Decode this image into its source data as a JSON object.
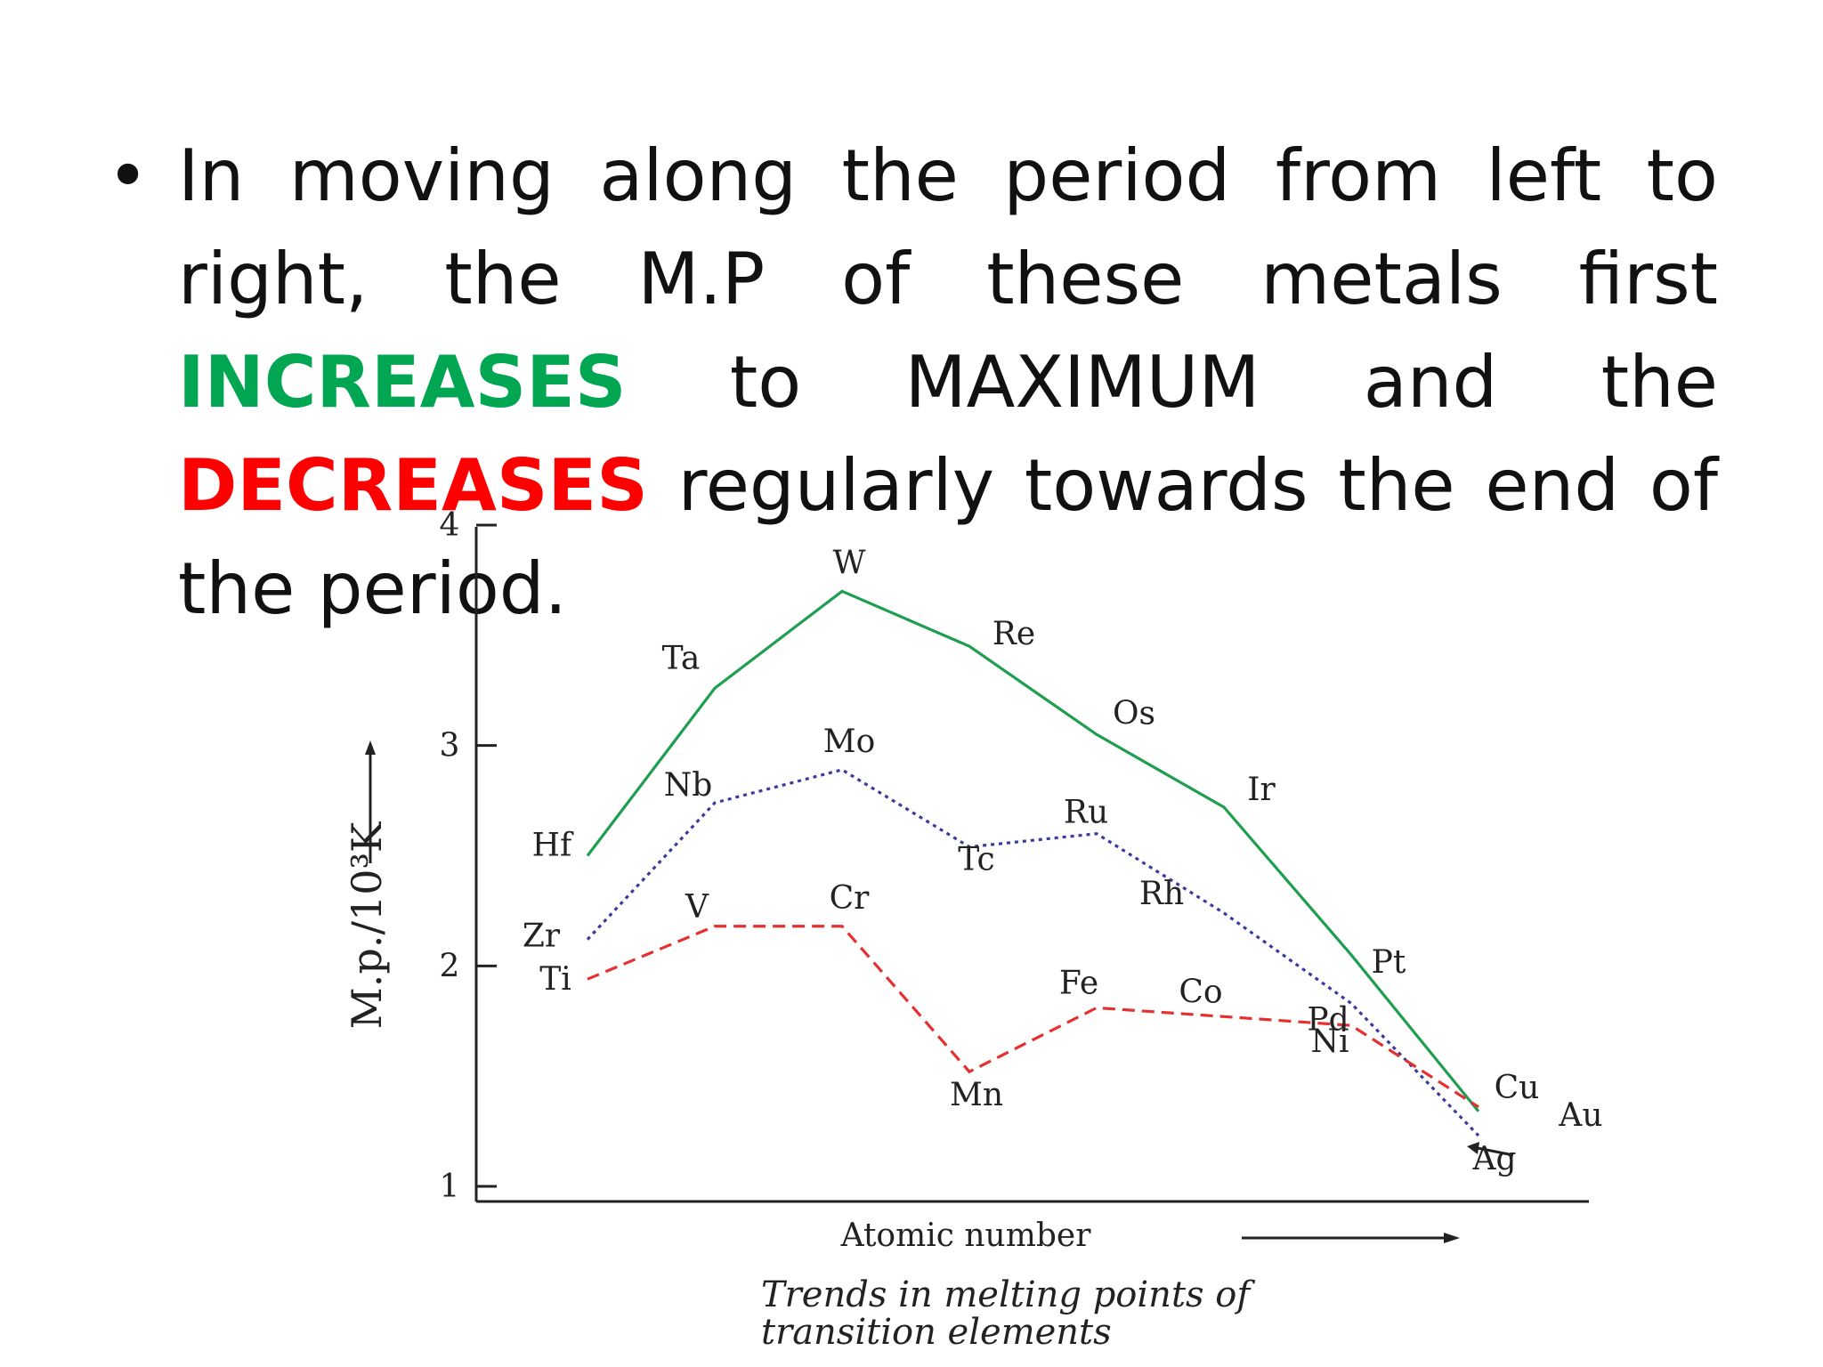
{
  "slide": {
    "bullet_symbol": "•",
    "bullet_parts": [
      {
        "text": "In moving along the period from left to right, the M.P of these metals first ",
        "style": "normal"
      },
      {
        "text": "INCREASES",
        "style": "green"
      },
      {
        "text": " to MAXIMUM and the ",
        "style": "normal"
      },
      {
        "text": "DECREASES",
        "style": "red"
      },
      {
        "text": " regularly towards the end of the period.",
        "style": "normal"
      }
    ]
  },
  "colors": {
    "green": "#00a651",
    "red": "#ff0000",
    "series_5d": "#1f9e4f",
    "series_4d": "#3b3b9e",
    "series_3d": "#e53030"
  },
  "chart_data": {
    "type": "line",
    "title": "Trends in melting points of transition elements",
    "xlabel": "Atomic number",
    "ylabel": "M.p./10³K",
    "yticks": [
      "1",
      "2",
      "3",
      "4"
    ],
    "ylim": [
      1,
      4
    ],
    "grid": false,
    "series": [
      {
        "line": "solid",
        "color": "#1f9e4f",
        "labels": [
          "Hf",
          "Ta",
          "W",
          "Re",
          "Os",
          "Ir",
          "Pt",
          "Au"
        ],
        "x": [
          1,
          2,
          3,
          4,
          5,
          6,
          7,
          8
        ],
        "values": [
          2.5,
          3.26,
          3.7,
          3.45,
          3.05,
          2.72,
          2.05,
          1.34
        ]
      },
      {
        "line": "dotted",
        "color": "#3b3b9e",
        "labels": [
          "Zr",
          "Nb",
          "Mo",
          "Tc",
          "Ru",
          "Rh",
          "Pd",
          "Ag"
        ],
        "x": [
          1,
          2,
          3,
          4,
          5,
          6,
          7,
          8
        ],
        "values": [
          2.12,
          2.74,
          2.89,
          2.54,
          2.6,
          2.24,
          1.83,
          1.23
        ]
      },
      {
        "line": "dashed",
        "color": "#e53030",
        "labels": [
          "Ti",
          "V",
          "Cr",
          "Mn",
          "Fe",
          "Co",
          "Ni",
          "Cu"
        ],
        "x": [
          1,
          2,
          3,
          4,
          5,
          6,
          7,
          8
        ],
        "values": [
          1.94,
          2.18,
          2.18,
          1.52,
          1.81,
          1.77,
          1.73,
          1.36
        ]
      }
    ]
  }
}
